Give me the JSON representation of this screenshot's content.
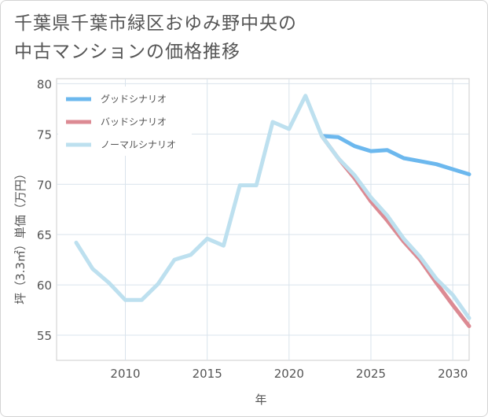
{
  "title": {
    "line1": "千葉県千葉市緑区おゆみ野中央の",
    "line2": "中古マンションの価格推移"
  },
  "chart_data": {
    "type": "line",
    "xlabel": "年",
    "ylabel": "坪（3.3㎡）単価（万円）",
    "xlim": [
      2005.8,
      2031
    ],
    "ylim": [
      52.5,
      80.5
    ],
    "xticks": [
      2010,
      2015,
      2020,
      2025,
      2030
    ],
    "yticks": [
      55,
      60,
      65,
      70,
      75,
      80
    ],
    "grid": true,
    "legend_position": "top-left",
    "series": [
      {
        "name": "グッドシナリオ",
        "color": "#6cb8ee",
        "x": [
          2022,
          2023,
          2024,
          2025,
          2026,
          2027,
          2028,
          2029,
          2030,
          2031
        ],
        "y": [
          74.8,
          74.7,
          73.8,
          73.3,
          73.4,
          72.6,
          72.3,
          72.0,
          71.5,
          71.0
        ]
      },
      {
        "name": "バッドシナリオ",
        "color": "#dc8a93",
        "x": [
          2022,
          2023,
          2024,
          2025,
          2026,
          2027,
          2028,
          2029,
          2030,
          2031
        ],
        "y": [
          74.8,
          72.6,
          70.6,
          68.3,
          66.4,
          64.3,
          62.5,
          60.2,
          58.0,
          55.9
        ]
      },
      {
        "name": "ノーマルシナリオ",
        "color": "#bde0ef",
        "x": [
          2007,
          2008,
          2009,
          2010,
          2011,
          2012,
          2013,
          2014,
          2015,
          2016,
          2017,
          2018,
          2019,
          2020,
          2021,
          2022,
          2023,
          2024,
          2025,
          2026,
          2027,
          2028,
          2029,
          2030,
          2031
        ],
        "y": [
          64.2,
          61.6,
          60.2,
          58.5,
          58.5,
          60.1,
          62.5,
          63.0,
          64.6,
          63.9,
          69.9,
          69.9,
          76.2,
          75.5,
          78.8,
          74.8,
          72.6,
          70.9,
          68.7,
          66.9,
          64.6,
          62.8,
          60.6,
          59.0,
          56.7
        ]
      }
    ]
  }
}
